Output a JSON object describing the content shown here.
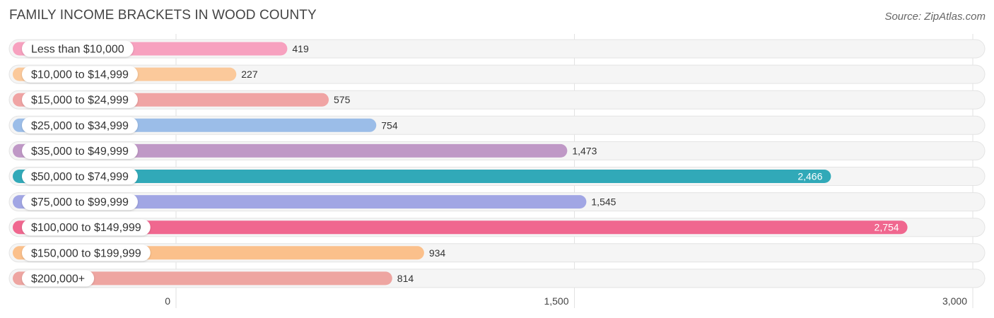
{
  "header": {
    "title": "FAMILY INCOME BRACKETS IN WOOD COUNTY",
    "source": "Source: ZipAtlas.com"
  },
  "chart_data": {
    "type": "bar",
    "orientation": "horizontal",
    "categories": [
      "Less than $10,000",
      "$10,000 to $14,999",
      "$15,000 to $24,999",
      "$25,000 to $34,999",
      "$35,000 to $49,999",
      "$50,000 to $74,999",
      "$75,000 to $99,999",
      "$100,000 to $149,999",
      "$150,000 to $199,999",
      "$200,000+"
    ],
    "values": [
      419,
      227,
      575,
      754,
      1473,
      2466,
      1545,
      2754,
      934,
      814
    ],
    "value_labels": [
      "419",
      "227",
      "575",
      "754",
      "1,473",
      "2,466",
      "1,545",
      "2,754",
      "934",
      "814"
    ],
    "colors": [
      "#f7a1bf",
      "#fbc99b",
      "#f0a4a4",
      "#9bbde8",
      "#bf98c6",
      "#31a9b8",
      "#a1a6e4",
      "#f0678f",
      "#fbc08b",
      "#eea5a1"
    ],
    "xlim": [
      0,
      3000
    ],
    "xticks": [
      0,
      1500,
      3000
    ],
    "xtick_labels": [
      "0",
      "1,500",
      "3,000"
    ],
    "grid": true
  }
}
